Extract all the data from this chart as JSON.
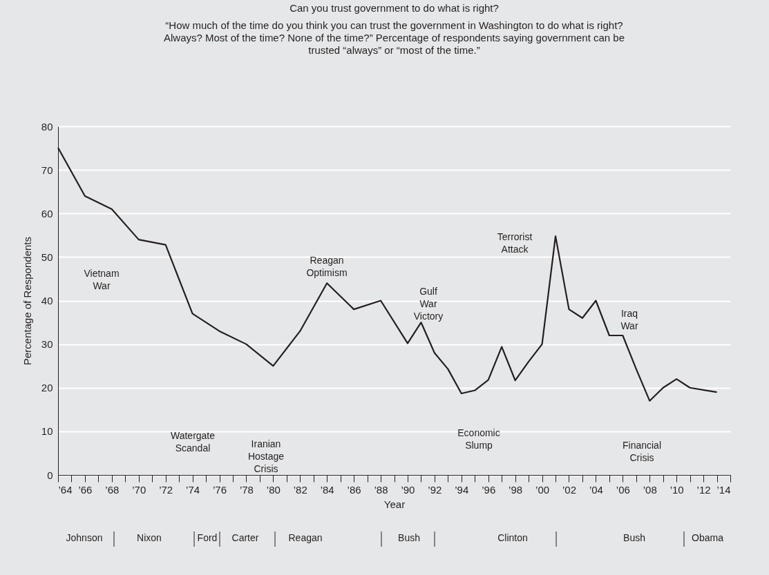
{
  "chart_data": {
    "type": "line",
    "title": "Can you trust government to do what is right?",
    "subtitle": [
      "“How much of the time do you think you can trust the government in Washington to do what is right?",
      "Always? Most of the time? None of the time?” Percentage of respondents saying government can be",
      "trusted “always” or “most of the time.”"
    ],
    "xlabel": "Year",
    "ylabel": "Percentage of Respondents",
    "x": [
      1964,
      1966,
      1968,
      1970,
      1972,
      1974,
      1976,
      1978,
      1980,
      1982,
      1984,
      1986,
      1988,
      1990,
      1991,
      1992,
      1993,
      1994,
      1995,
      1996,
      1997,
      1998,
      1999,
      2000,
      2001,
      2002,
      2003,
      2004,
      2005,
      2006,
      2007,
      2008,
      2009,
      2010,
      2011,
      2013
    ],
    "series": [
      {
        "color": "#231f20",
        "values": [
          75.1,
          64,
          61,
          54,
          52.8,
          37,
          33,
          30,
          25,
          33,
          44,
          38,
          40,
          30.2,
          35,
          28,
          24.3,
          18.7,
          19.4,
          21.8,
          29.4,
          21.7,
          26,
          30,
          54.8,
          38,
          36,
          40,
          32,
          32,
          24.3,
          17,
          20,
          22,
          20,
          19
        ]
      }
    ],
    "xlim": [
      1964,
      2014
    ],
    "ylim": [
      0,
      80
    ],
    "xticks": [
      {
        "value": 1964,
        "label": "’64"
      },
      {
        "value": 1965,
        "label": null
      },
      {
        "value": 1966,
        "label": "’66"
      },
      {
        "value": 1967,
        "label": null
      },
      {
        "value": 1968,
        "label": "’68"
      },
      {
        "value": 1969,
        "label": null
      },
      {
        "value": 1970,
        "label": "’70"
      },
      {
        "value": 1971,
        "label": null
      },
      {
        "value": 1972,
        "label": "’72"
      },
      {
        "value": 1973,
        "label": null
      },
      {
        "value": 1974,
        "label": "’74"
      },
      {
        "value": 1975,
        "label": null
      },
      {
        "value": 1976,
        "label": "’76"
      },
      {
        "value": 1977,
        "label": null
      },
      {
        "value": 1978,
        "label": "’78"
      },
      {
        "value": 1979,
        "label": null
      },
      {
        "value": 1980,
        "label": "’80"
      },
      {
        "value": 1981,
        "label": null
      },
      {
        "value": 1982,
        "label": "’82"
      },
      {
        "value": 1983,
        "label": null
      },
      {
        "value": 1984,
        "label": "’84"
      },
      {
        "value": 1985,
        "label": null
      },
      {
        "value": 1986,
        "label": "’86"
      },
      {
        "value": 1987,
        "label": null
      },
      {
        "value": 1988,
        "label": "’88"
      },
      {
        "value": 1989,
        "label": null
      },
      {
        "value": 1990,
        "label": "’90"
      },
      {
        "value": 1991,
        "label": null
      },
      {
        "value": 1992,
        "label": "’92"
      },
      {
        "value": 1993,
        "label": null
      },
      {
        "value": 1994,
        "label": "’94"
      },
      {
        "value": 1995,
        "label": null
      },
      {
        "value": 1996,
        "label": "’96"
      },
      {
        "value": 1997,
        "label": null
      },
      {
        "value": 1998,
        "label": "’98"
      },
      {
        "value": 1999,
        "label": null
      },
      {
        "value": 2000,
        "label": "’00"
      },
      {
        "value": 2001,
        "label": null
      },
      {
        "value": 2002,
        "label": "’02"
      },
      {
        "value": 2003,
        "label": null
      },
      {
        "value": 2004,
        "label": "’04"
      },
      {
        "value": 2005,
        "label": null
      },
      {
        "value": 2006,
        "label": "’06"
      },
      {
        "value": 2007,
        "label": null
      },
      {
        "value": 2008,
        "label": "’08"
      },
      {
        "value": 2009,
        "label": null
      },
      {
        "value": 2010,
        "label": "’10"
      },
      {
        "value": 2011,
        "label": null
      },
      {
        "value": 2012,
        "label": "’12"
      },
      {
        "value": 2013,
        "label": null
      },
      {
        "value": 2014,
        "label": "’14"
      }
    ],
    "yticks": [
      0,
      10,
      20,
      30,
      40,
      50,
      60,
      70,
      80
    ],
    "grid": "y",
    "marker": "none",
    "line_style": "solid",
    "annotations": [
      "Vietnam\nWar",
      "Watergate\nScandal",
      "Iranian\nHostage\nCrisis",
      "Reagan\nOptimism",
      "Gulf\nWar\nVictory",
      "Economic\nSlump",
      "Terrorist\nAttack",
      "Iraq\nWar",
      "Financial\nCrisis",
      "Johnson",
      "Nixon",
      "Ford",
      "Carter",
      "Reagan",
      "Bush",
      "Clinton",
      "Bush",
      "Obama"
    ]
  }
}
